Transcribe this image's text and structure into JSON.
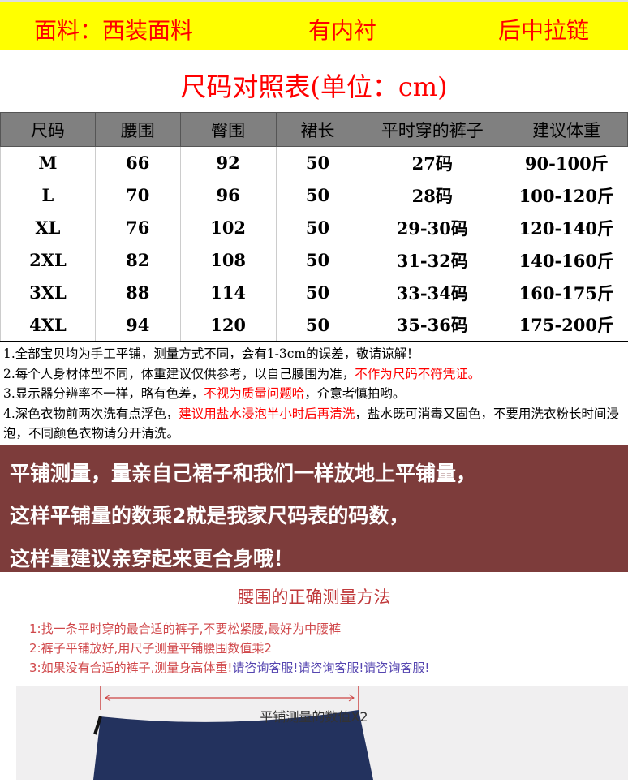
{
  "header": {
    "fabric": "面料：西装面料",
    "lining": "有内衬",
    "zipper": "后中拉链"
  },
  "title": "尺码对照表(单位：cm)",
  "table": {
    "columns": [
      "尺码",
      "腰围",
      "臀围",
      "裙长",
      "平时穿的裤子",
      "建议体重"
    ],
    "rows": [
      [
        "M",
        "66",
        "92",
        "50",
        "27码",
        "90-100斤"
      ],
      [
        "L",
        "70",
        "96",
        "50",
        "28码",
        "100-120斤"
      ],
      [
        "XL",
        "76",
        "102",
        "50",
        "29-30码",
        "120-140斤"
      ],
      [
        "2XL",
        "82",
        "108",
        "50",
        "31-32码",
        "140-160斤"
      ],
      [
        "3XL",
        "88",
        "114",
        "50",
        "33-34码",
        "160-175斤"
      ],
      [
        "4XL",
        "94",
        "120",
        "50",
        "35-36码",
        "175-200斤"
      ]
    ]
  },
  "notes": {
    "n1": "1.全部宝贝均为手工平铺，测量方式不同，会有1-3cm的误差，敬请谅解！",
    "n2a": "2.每个人身材体型不同，体重建议仅供参考，以自己腰围为准，",
    "n2b": "不作为尺码不符凭证。",
    "n3a": "3.显示器分辨率不一样，略有色差，",
    "n3b": "不视为质量问题哈",
    "n3c": "，介意者慎拍哟。",
    "n4a": "4.深色衣物前两次洗有点浮色，",
    "n4b": "建议用盐水浸泡半小时后再清洗",
    "n4c": "，盐水既可消毒又固色，不要用洗衣粉长时间浸泡，不同颜色衣物请分开清洗。"
  },
  "banner": [
    "平铺测量，量亲自己裙子和我们一样放地上平铺量，",
    "这样平铺量的数乘2就是我家尺码表的码数，",
    "这样量建议亲穿起来更合身哦！"
  ],
  "method": {
    "title": "腰围的正确测量方法",
    "l1": "1:找一条平时穿的最合适的裤子,不要松紧腰,最好为中腰裤",
    "l2": "2:裤子平铺放好,用尺子测量平铺腰围数值乘2",
    "l3a": "3:如果没有合适的裤子,测量身高体重!",
    "l3b": "请咨询客服!请咨询客服!请咨询客服!",
    "measure_label": "平铺测量的数值X2"
  },
  "colors": {
    "banner": "#7d3c3b",
    "header_bg": "#ffff00",
    "accent": "#ff0000",
    "pants": "#23325e"
  }
}
